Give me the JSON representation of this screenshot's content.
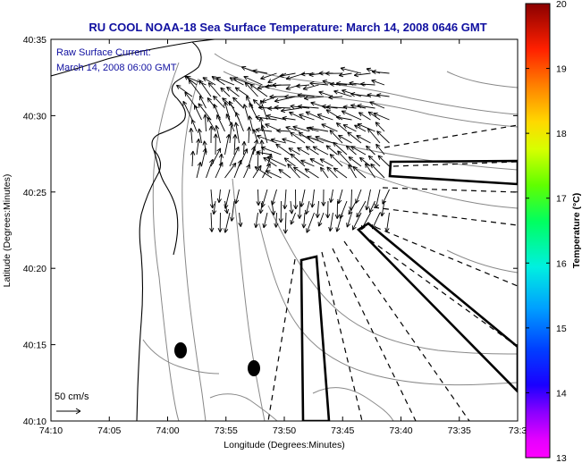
{
  "title": "RU COOL  NOAA-18  Sea Surface Temperature:  March 14, 2008 0646 GMT",
  "annotation": {
    "line1": "Raw Surface Current:",
    "line2": "March 14, 2008 06:00 GMT"
  },
  "scale_label": "50 cm/s",
  "xlabel": "Longitude (Degrees:Minutes)",
  "ylabel": "Latitude (Degrees:Minutes)",
  "x_ticks": [
    "74:10",
    "74:05",
    "74:00",
    "73:55",
    "73:50",
    "73:45",
    "73:40",
    "73:35",
    "73:3"
  ],
  "y_ticks": [
    "40:35",
    "40:30",
    "40:25",
    "40:20",
    "40:15",
    "40:10"
  ],
  "colorbar": {
    "label": "Temperature (°C)",
    "min": 13,
    "max": 20,
    "ticks": [
      "20",
      "19",
      "18",
      "17",
      "16",
      "15",
      "14",
      "13"
    ]
  },
  "colors": {
    "title_text": "#1010a0",
    "land_outline": "#000000",
    "bathymetry": "#888888",
    "vectors": "#000000"
  },
  "chart_data": {
    "type": "map",
    "map_extent": {
      "lon_range": [
        "74:10 W",
        "73:3 W"
      ],
      "lat_range": [
        "40:10 N",
        "40:35 N"
      ]
    },
    "layers": [
      "coastline",
      "bathymetry contours",
      "surface current vectors",
      "dashed radial lines",
      "solid outlined polygons",
      "black dots"
    ],
    "vector_reference": "50 cm/s",
    "grid": false,
    "legend": "colorbar right"
  }
}
